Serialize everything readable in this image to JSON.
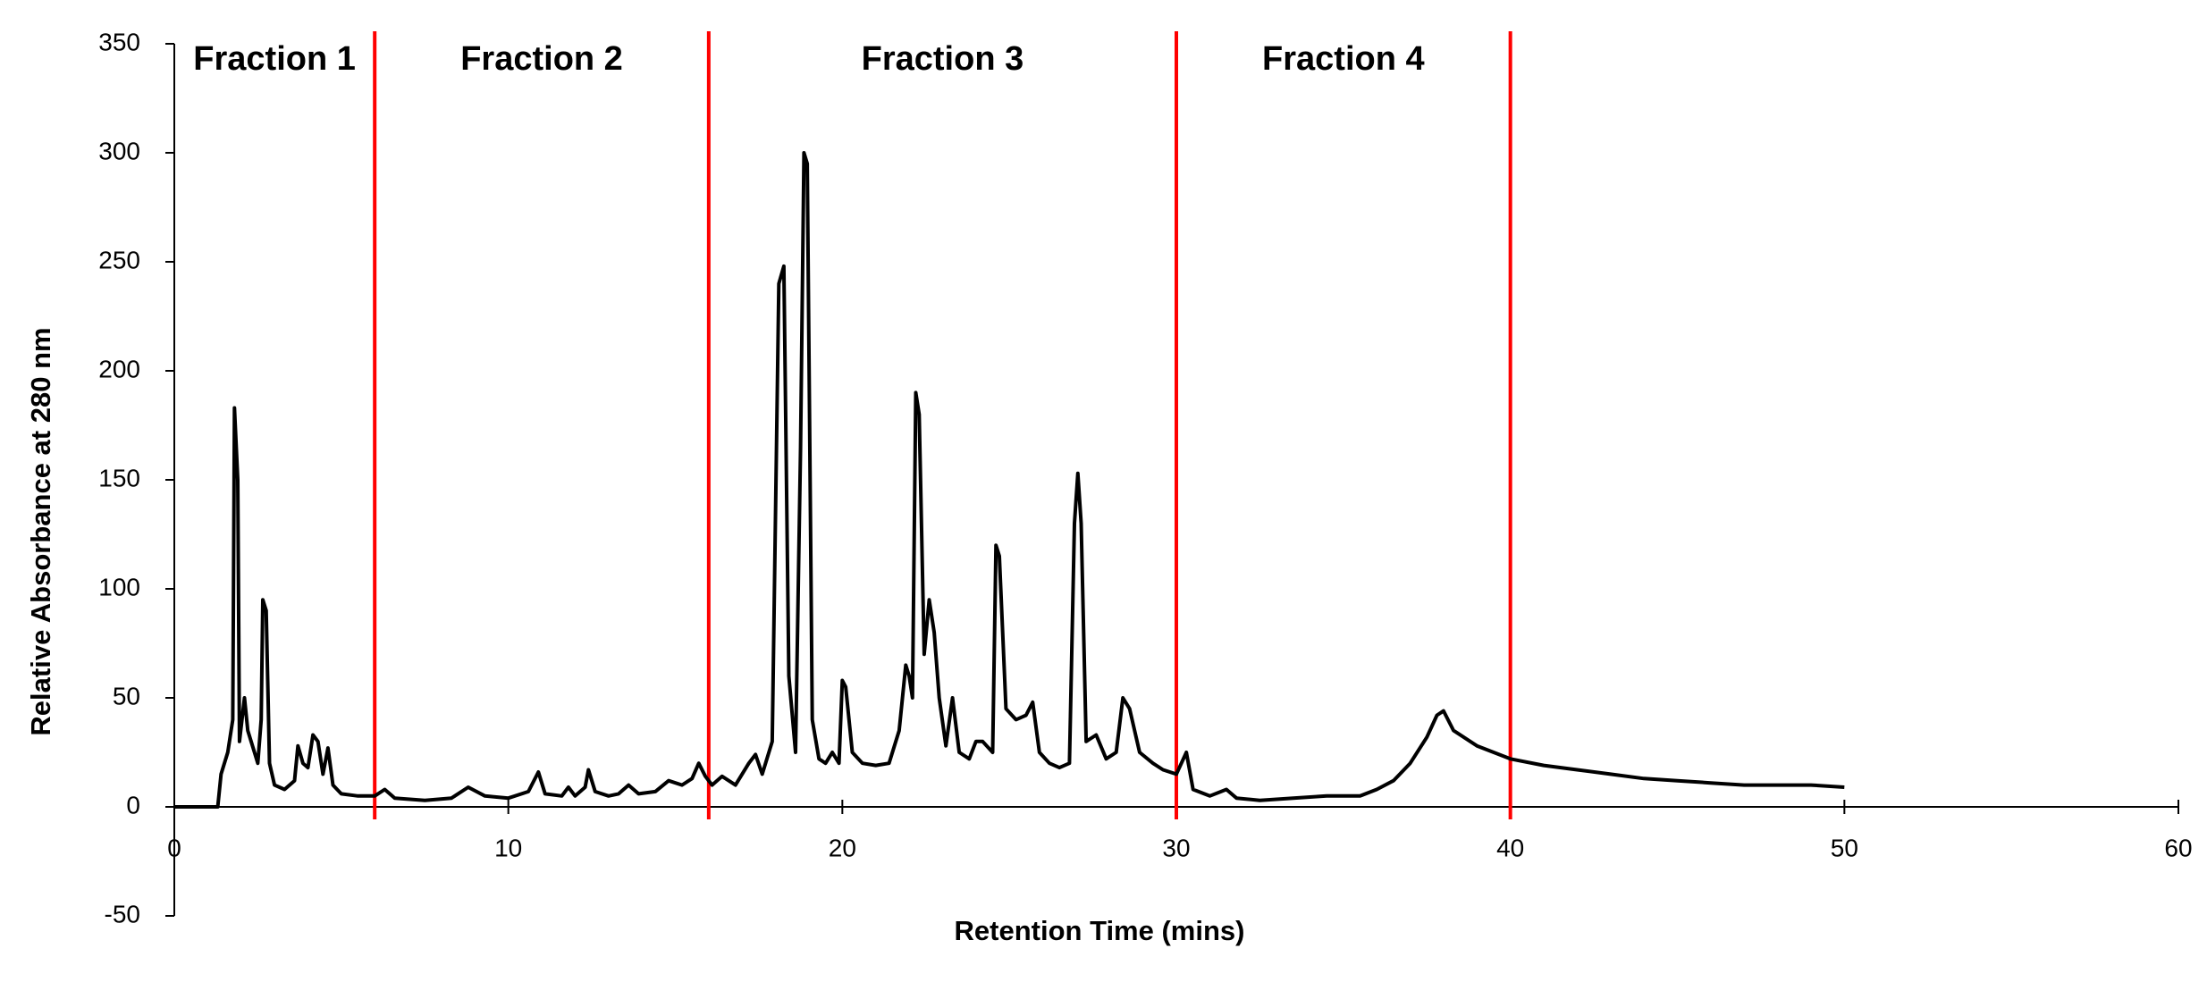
{
  "chart_data": {
    "type": "line",
    "x_label": "Retention Time (mins)",
    "y_label": "Relative Absorbance at 280 nm",
    "xlim": [
      0,
      60
    ],
    "xticks": [
      0,
      10,
      20,
      30,
      40,
      50,
      60
    ],
    "ylim": [
      -50,
      350
    ],
    "yticks": [
      -50,
      0,
      50,
      100,
      150,
      200,
      250,
      300,
      350
    ],
    "grid": false,
    "color": "#000000",
    "divider_color": "#ff0000",
    "dividers": [
      6,
      16,
      30,
      40
    ],
    "fraction_labels": [
      "Fraction 1",
      "Fraction 2",
      "Fraction 3",
      "Fraction 4"
    ],
    "x": [
      0,
      1.3,
      1.4,
      1.6,
      1.75,
      1.8,
      1.9,
      1.95,
      2.1,
      2.2,
      2.4,
      2.5,
      2.6,
      2.65,
      2.75,
      2.85,
      3.0,
      3.3,
      3.6,
      3.7,
      3.85,
      4.0,
      4.15,
      4.3,
      4.45,
      4.6,
      4.75,
      5.0,
      5.5,
      6.0,
      6.3,
      6.6,
      7.5,
      8.3,
      8.8,
      9.3,
      10.0,
      10.6,
      10.9,
      11.1,
      11.6,
      11.8,
      12.0,
      12.3,
      12.4,
      12.6,
      13.0,
      13.3,
      13.6,
      13.9,
      14.4,
      14.8,
      15.2,
      15.5,
      15.7,
      15.9,
      16.1,
      16.4,
      16.8,
      17.2,
      17.4,
      17.6,
      17.9,
      18.1,
      18.25,
      18.4,
      18.6,
      18.75,
      18.85,
      18.95,
      19.1,
      19.3,
      19.5,
      19.7,
      19.9,
      20.0,
      20.1,
      20.3,
      20.6,
      21.0,
      21.4,
      21.7,
      21.9,
      22.0,
      22.1,
      22.2,
      22.3,
      22.45,
      22.6,
      22.75,
      22.9,
      23.1,
      23.3,
      23.5,
      23.8,
      24.0,
      24.2,
      24.5,
      24.6,
      24.7,
      24.9,
      25.2,
      25.5,
      25.7,
      25.9,
      26.2,
      26.5,
      26.8,
      26.95,
      27.05,
      27.15,
      27.3,
      27.6,
      27.9,
      28.2,
      28.4,
      28.6,
      28.9,
      29.3,
      29.6,
      30.0,
      30.3,
      30.5,
      31.0,
      31.5,
      31.8,
      32.5,
      33.5,
      34.5,
      35.5,
      36.0,
      36.5,
      37.0,
      37.5,
      37.8,
      38.0,
      38.3,
      39.0,
      40.0,
      41.0,
      42.0,
      43.0,
      44.0,
      45.0,
      46.0,
      47.0,
      48.0,
      49.0,
      50.0
    ],
    "values": [
      0,
      0,
      15,
      25,
      40,
      183,
      150,
      30,
      50,
      35,
      25,
      20,
      40,
      95,
      90,
      20,
      10,
      8,
      12,
      28,
      20,
      18,
      33,
      30,
      15,
      27,
      10,
      6,
      5,
      5,
      8,
      4,
      3,
      4,
      9,
      5,
      4,
      7,
      16,
      6,
      5,
      9,
      5,
      9,
      17,
      7,
      5,
      6,
      10,
      6,
      7,
      12,
      10,
      13,
      20,
      14,
      10,
      14,
      10,
      20,
      24,
      15,
      30,
      240,
      248,
      60,
      25,
      165,
      300,
      295,
      40,
      22,
      20,
      25,
      20,
      58,
      55,
      25,
      20,
      19,
      20,
      35,
      65,
      60,
      50,
      190,
      180,
      70,
      95,
      80,
      50,
      28,
      50,
      25,
      22,
      30,
      30,
      25,
      120,
      115,
      45,
      40,
      42,
      48,
      25,
      20,
      18,
      20,
      130,
      153,
      130,
      30,
      33,
      22,
      25,
      50,
      45,
      25,
      20,
      17,
      15,
      25,
      8,
      5,
      8,
      4,
      3,
      4,
      5,
      5,
      8,
      12,
      20,
      32,
      42,
      44,
      35,
      28,
      22,
      19,
      17,
      15,
      13,
      12,
      11,
      10,
      10,
      10,
      9
    ]
  }
}
